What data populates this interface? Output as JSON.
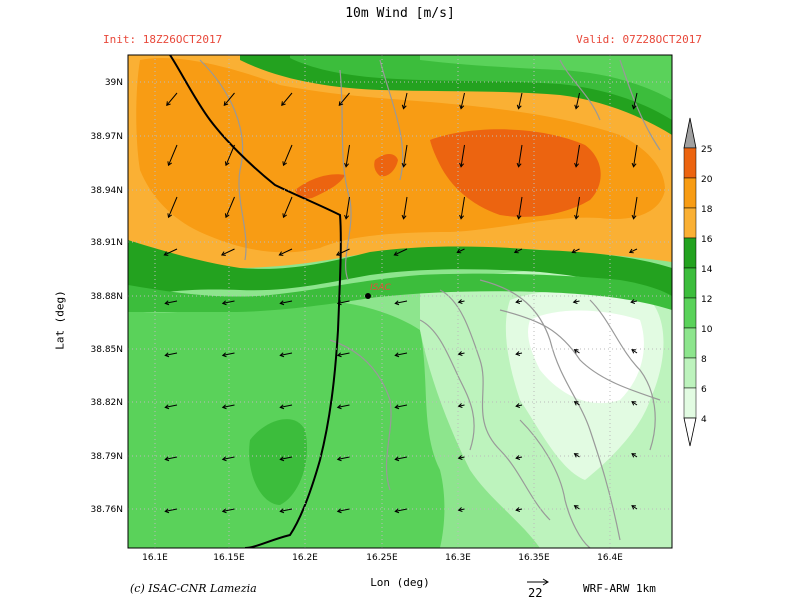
{
  "header": {
    "title": "10m Wind [m/s]",
    "init": "Init: 18Z26OCT2017",
    "valid": "Valid: 07Z28OCT2017"
  },
  "axes": {
    "ylabel": "Lat (deg)",
    "xlabel": "Lon (deg)",
    "x_ticks": [
      "16.1E",
      "16.15E",
      "16.2E",
      "16.25E",
      "16.3E",
      "16.35E",
      "16.4E"
    ],
    "y_ticks": [
      "39N",
      "38.97N",
      "38.94N",
      "38.91N",
      "38.88N",
      "38.85N",
      "38.82N",
      "38.79N",
      "38.76N"
    ]
  },
  "colorbar": {
    "levels": [
      "25",
      "20",
      "18",
      "16",
      "14",
      "12",
      "10",
      "8",
      "6",
      "4"
    ],
    "colors": [
      "#ec6410",
      "#f89c14",
      "#fab034",
      "#23a21f",
      "#3cbd3c",
      "#5ad25a",
      "#8de58d",
      "#bdf3bd",
      "#e2fbe2"
    ]
  },
  "map": {
    "station_label": "ISAC",
    "station_color": "#e8483a"
  },
  "footer": {
    "credit": "(c) ISAC-CNR Lamezia",
    "ref_vector": "22",
    "model": "WRF-ARW 1km"
  }
}
